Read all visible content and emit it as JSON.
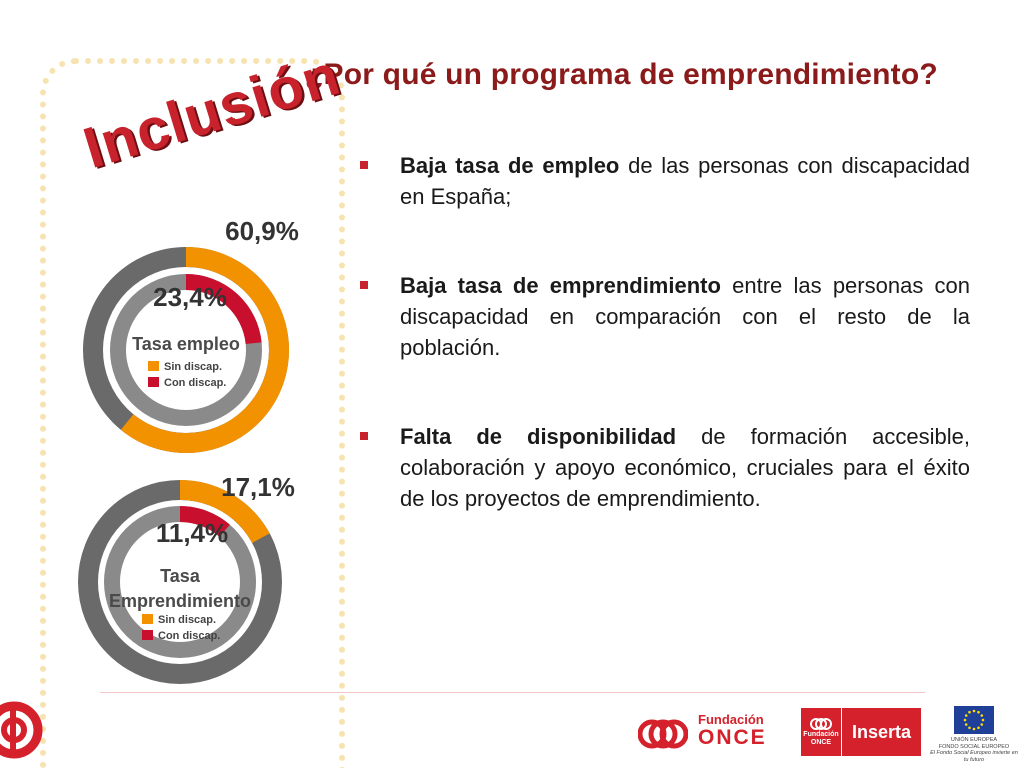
{
  "slide": {
    "title": "¿Por qué un programa de emprendimiento?",
    "section_word": "Inclusión"
  },
  "charts": [
    {
      "name": "tasa-empleo",
      "label_lines": [
        "Tasa empleo"
      ],
      "outer_value_label": "60,9%",
      "inner_value_label": "23,4%",
      "legend": [
        {
          "label": "Sin discap.",
          "color": "#f39200"
        },
        {
          "label": "Con discap.",
          "color": "#c8102e"
        }
      ]
    },
    {
      "name": "tasa-emprendimiento",
      "label_lines": [
        "Tasa",
        "Emprendimiento"
      ],
      "outer_value_label": "17,1%",
      "inner_value_label": "11,4%",
      "legend": [
        {
          "label": "Sin discap.",
          "color": "#f39200"
        },
        {
          "label": "Con discap.",
          "color": "#c8102e"
        }
      ]
    }
  ],
  "chart_data": [
    {
      "type": "pie",
      "title": "Tasa empleo",
      "series": [
        {
          "name": "Sin discap.",
          "values": [
            60.9
          ]
        },
        {
          "name": "Con discap.",
          "values": [
            23.4
          ]
        }
      ]
    },
    {
      "type": "pie",
      "title": "Tasa Emprendimiento",
      "series": [
        {
          "name": "Sin discap.",
          "values": [
            17.1
          ]
        },
        {
          "name": "Con discap.",
          "values": [
            11.4
          ]
        }
      ]
    }
  ],
  "bullets": [
    {
      "bold": "Baja tasa de empleo",
      "rest": " de las personas con discapacidad en España;"
    },
    {
      "bold": "Baja tasa de emprendimiento",
      "rest": " entre las personas con discapacidad en comparación con el resto de la población."
    },
    {
      "bold": "Falta de disponibilidad",
      "rest": " de formación accesible, colaboración y apoyo económico, cruciales para el éxito de los proyectos de emprendimiento."
    }
  ],
  "footer": {
    "fundacion_line1": "Fundación",
    "fundacion_line2": "ONCE",
    "inserta_mini_line1": "Fundación",
    "inserta_mini_line2": "ONCE",
    "inserta_word": "Inserta",
    "eu_line1": "UNIÓN EUROPEA",
    "eu_line2": "FONDO SOCIAL EUROPEO",
    "eu_line3": "El Fondo Social Europeo invierte en tu futuro"
  },
  "colors": {
    "title": "#8b1a1a",
    "accent_red": "#c8232c",
    "ring_orange": "#f39200",
    "ring_red": "#c8102e",
    "ring_grey": "#6a6a6a",
    "eu_blue": "#1f3f99",
    "eu_star": "#ffdd00"
  }
}
